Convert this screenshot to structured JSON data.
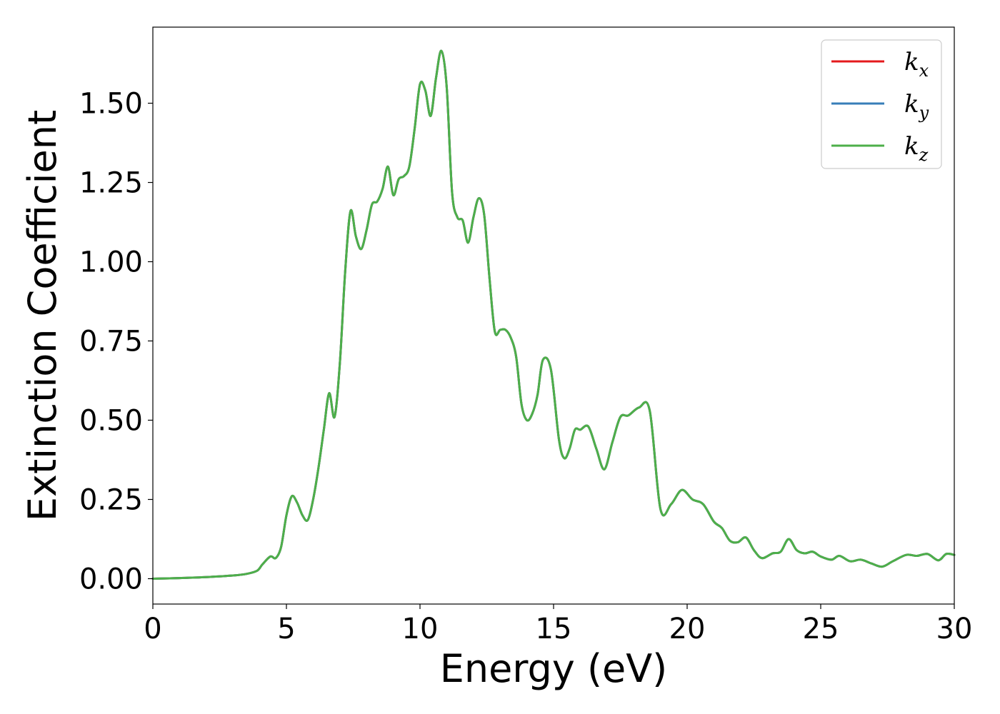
{
  "chart_data": {
    "type": "line",
    "title": "",
    "xlabel": "Energy (eV)",
    "ylabel": "Extinction Coefficient",
    "xlim": [
      0,
      30
    ],
    "ylim": [
      -0.08,
      1.74
    ],
    "grid": false,
    "legend_position": "top-right",
    "xticks": [
      0,
      5,
      10,
      15,
      20,
      25,
      30
    ],
    "xtick_labels": [
      "0",
      "5",
      "10",
      "15",
      "20",
      "25",
      "30"
    ],
    "yticks": [
      0,
      0.25,
      0.5,
      0.75,
      1.0,
      1.25,
      1.5
    ],
    "ytick_labels": [
      "0.00",
      "0.25",
      "0.50",
      "0.75",
      "1.00",
      "1.25",
      "1.50"
    ],
    "x": [
      0,
      1,
      2,
      3,
      3.5,
      3.9,
      4.1,
      4.4,
      4.6,
      4.8,
      5.0,
      5.2,
      5.4,
      5.6,
      5.8,
      6.0,
      6.2,
      6.4,
      6.6,
      6.8,
      7.0,
      7.2,
      7.4,
      7.6,
      7.8,
      8.0,
      8.2,
      8.4,
      8.6,
      8.8,
      9.0,
      9.2,
      9.4,
      9.6,
      9.8,
      10.0,
      10.2,
      10.4,
      10.6,
      10.8,
      11.0,
      11.2,
      11.4,
      11.6,
      11.8,
      12.0,
      12.2,
      12.4,
      12.6,
      12.8,
      13.0,
      13.2,
      13.4,
      13.6,
      13.8,
      14.0,
      14.2,
      14.4,
      14.6,
      14.9,
      15.2,
      15.4,
      15.6,
      15.8,
      16.0,
      16.3,
      16.6,
      16.9,
      17.2,
      17.5,
      17.8,
      18.2,
      18.6,
      19.0,
      19.4,
      19.8,
      20.2,
      20.6,
      21.0,
      21.3,
      21.6,
      21.9,
      22.2,
      22.5,
      22.8,
      23.2,
      23.5,
      23.8,
      24.1,
      24.4,
      24.7,
      25.0,
      25.4,
      25.7,
      26.1,
      26.5,
      26.9,
      27.3,
      27.7,
      28.2,
      28.6,
      29.0,
      29.4,
      29.7,
      30.0
    ],
    "series": [
      {
        "name": "k_x",
        "color": "#e41a1c",
        "values": [
          0.0,
          0.002,
          0.005,
          0.01,
          0.015,
          0.025,
          0.045,
          0.07,
          0.065,
          0.1,
          0.2,
          0.26,
          0.24,
          0.2,
          0.185,
          0.25,
          0.35,
          0.47,
          0.585,
          0.51,
          0.68,
          0.97,
          1.16,
          1.08,
          1.04,
          1.1,
          1.18,
          1.19,
          1.23,
          1.3,
          1.21,
          1.26,
          1.27,
          1.3,
          1.42,
          1.56,
          1.54,
          1.46,
          1.58,
          1.665,
          1.55,
          1.22,
          1.14,
          1.13,
          1.06,
          1.14,
          1.2,
          1.15,
          0.95,
          0.78,
          0.785,
          0.785,
          0.76,
          0.7,
          0.55,
          0.5,
          0.52,
          0.58,
          0.69,
          0.66,
          0.44,
          0.38,
          0.41,
          0.47,
          0.47,
          0.48,
          0.41,
          0.345,
          0.43,
          0.51,
          0.515,
          0.54,
          0.53,
          0.22,
          0.235,
          0.28,
          0.25,
          0.235,
          0.18,
          0.16,
          0.12,
          0.115,
          0.13,
          0.09,
          0.065,
          0.08,
          0.085,
          0.125,
          0.09,
          0.08,
          0.085,
          0.07,
          0.06,
          0.072,
          0.055,
          0.06,
          0.048,
          0.038,
          0.055,
          0.075,
          0.072,
          0.078,
          0.058,
          0.078,
          0.075
        ]
      },
      {
        "name": "k_y",
        "color": "#377eb8",
        "values": [
          0.0,
          0.002,
          0.005,
          0.01,
          0.015,
          0.025,
          0.045,
          0.07,
          0.065,
          0.1,
          0.2,
          0.26,
          0.24,
          0.2,
          0.185,
          0.25,
          0.35,
          0.47,
          0.585,
          0.51,
          0.68,
          0.97,
          1.16,
          1.08,
          1.04,
          1.1,
          1.18,
          1.19,
          1.23,
          1.3,
          1.21,
          1.26,
          1.27,
          1.3,
          1.42,
          1.56,
          1.54,
          1.46,
          1.58,
          1.665,
          1.55,
          1.22,
          1.14,
          1.13,
          1.06,
          1.14,
          1.2,
          1.15,
          0.95,
          0.78,
          0.785,
          0.785,
          0.76,
          0.7,
          0.55,
          0.5,
          0.52,
          0.58,
          0.69,
          0.66,
          0.44,
          0.38,
          0.41,
          0.47,
          0.47,
          0.48,
          0.41,
          0.345,
          0.43,
          0.51,
          0.515,
          0.54,
          0.53,
          0.22,
          0.235,
          0.28,
          0.25,
          0.235,
          0.18,
          0.16,
          0.12,
          0.115,
          0.13,
          0.09,
          0.065,
          0.08,
          0.085,
          0.125,
          0.09,
          0.08,
          0.085,
          0.07,
          0.06,
          0.072,
          0.055,
          0.06,
          0.048,
          0.038,
          0.055,
          0.075,
          0.072,
          0.078,
          0.058,
          0.078,
          0.075
        ]
      },
      {
        "name": "k_z",
        "color": "#4daf4a",
        "values": [
          0.0,
          0.002,
          0.005,
          0.01,
          0.015,
          0.025,
          0.045,
          0.07,
          0.065,
          0.1,
          0.2,
          0.26,
          0.24,
          0.2,
          0.185,
          0.25,
          0.35,
          0.47,
          0.585,
          0.51,
          0.68,
          0.97,
          1.16,
          1.08,
          1.04,
          1.1,
          1.18,
          1.19,
          1.23,
          1.3,
          1.21,
          1.26,
          1.27,
          1.3,
          1.42,
          1.56,
          1.54,
          1.46,
          1.58,
          1.665,
          1.55,
          1.22,
          1.14,
          1.13,
          1.06,
          1.14,
          1.2,
          1.15,
          0.95,
          0.78,
          0.785,
          0.785,
          0.76,
          0.7,
          0.55,
          0.5,
          0.52,
          0.58,
          0.69,
          0.66,
          0.44,
          0.38,
          0.41,
          0.47,
          0.47,
          0.48,
          0.41,
          0.345,
          0.43,
          0.51,
          0.515,
          0.54,
          0.53,
          0.22,
          0.235,
          0.28,
          0.25,
          0.235,
          0.18,
          0.16,
          0.12,
          0.115,
          0.13,
          0.09,
          0.065,
          0.08,
          0.085,
          0.125,
          0.09,
          0.08,
          0.085,
          0.07,
          0.06,
          0.072,
          0.055,
          0.06,
          0.048,
          0.038,
          0.055,
          0.075,
          0.072,
          0.078,
          0.058,
          0.078,
          0.075
        ]
      }
    ],
    "legend": [
      {
        "symbol": "k",
        "subscript": "x",
        "color": "#e41a1c"
      },
      {
        "symbol": "k",
        "subscript": "y",
        "color": "#377eb8"
      },
      {
        "symbol": "k",
        "subscript": "z",
        "color": "#4daf4a"
      }
    ]
  }
}
